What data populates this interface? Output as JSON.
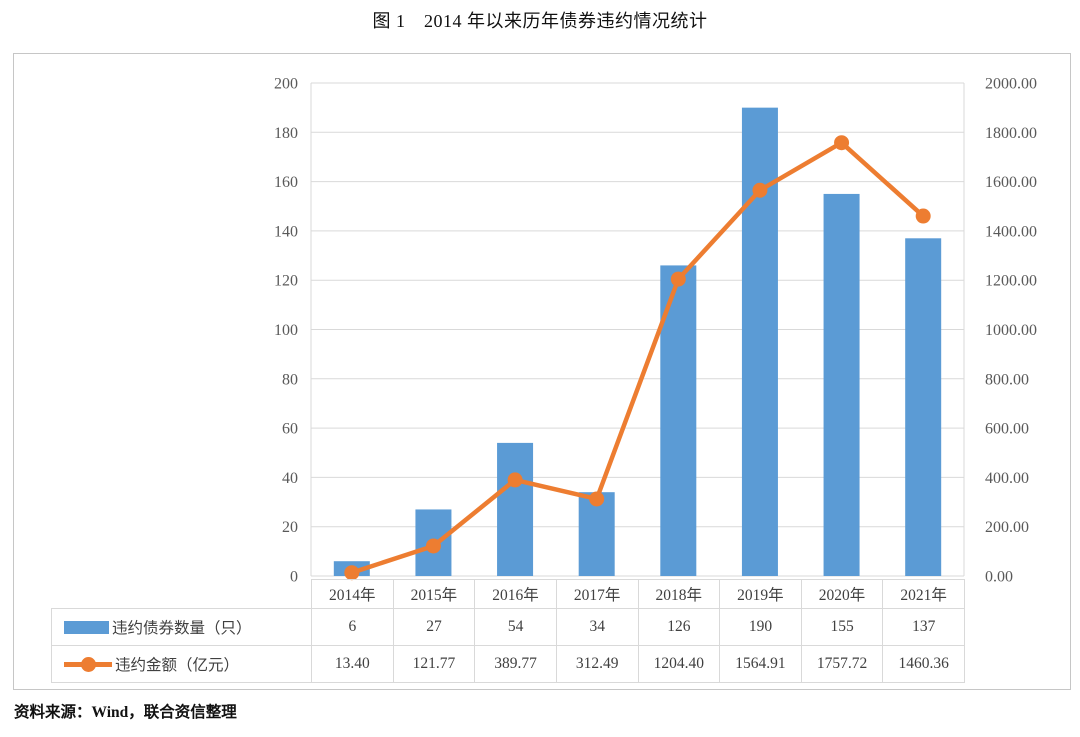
{
  "page": {
    "title": "图 1　2014 年以来历年债券违约情况统计",
    "source": "资料来源：Wind，联合资信整理"
  },
  "chart_data": {
    "type": "bar",
    "subtype": "bar-line-combo",
    "title": "图 1　2014 年以来历年债券违约情况统计",
    "categories": [
      "2014年",
      "2015年",
      "2016年",
      "2017年",
      "2018年",
      "2019年",
      "2020年",
      "2021年"
    ],
    "series": [
      {
        "name": "违约债券数量（只）",
        "type": "bar",
        "axis": "left",
        "color": "#5B9BD5",
        "values": [
          6,
          27,
          54,
          34,
          126,
          190,
          155,
          137
        ]
      },
      {
        "name": "违约金额（亿元）",
        "type": "line",
        "axis": "right",
        "color": "#ED7D31",
        "values": [
          13.4,
          121.77,
          389.77,
          312.49,
          1204.4,
          1564.91,
          1757.72,
          1460.36
        ],
        "value_decimals": 2
      }
    ],
    "left_axis": {
      "min": 0,
      "max": 200,
      "step": 20,
      "decimals": 0
    },
    "right_axis": {
      "min": 0,
      "max": 2000,
      "step": 200,
      "decimals": 2
    },
    "grid": true,
    "gridline_color": "#d9d9d9",
    "axis_text_color": "#595959",
    "legend_position": "data-table-below-plot",
    "xlabel": "",
    "ylabel": ""
  }
}
